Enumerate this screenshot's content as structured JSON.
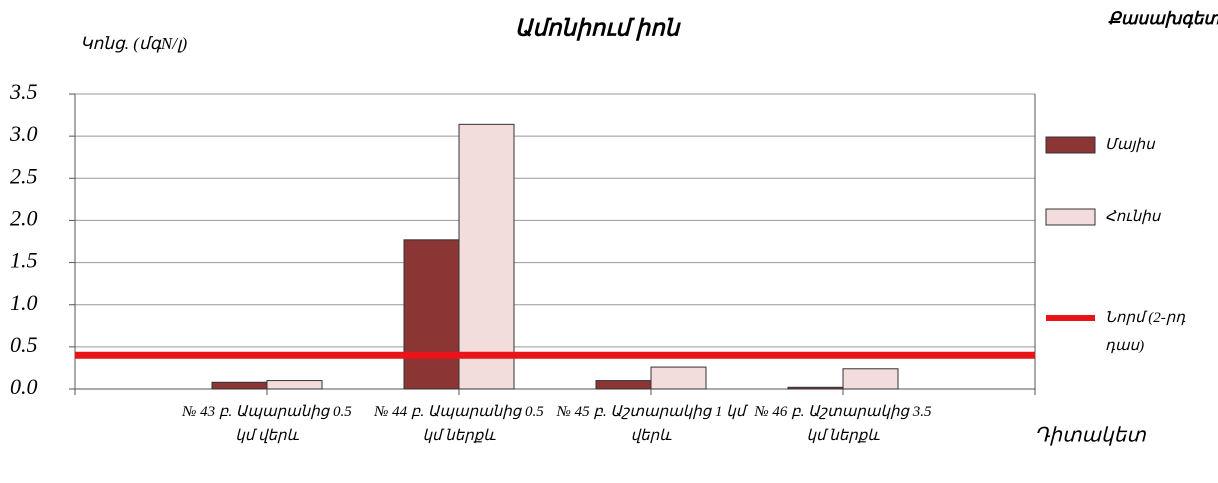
{
  "chart_data": {
    "type": "bar",
    "title": "Ամոնիում իոն",
    "y_label": "Կոնց. (մգN/լ)",
    "x_label": "Դիտակետ",
    "legend_title": "Քասախգետ",
    "categories": [
      "№ 43 բ. Ապարանից 0.5 կմ վերև",
      "№ 44 բ. Ապարանից 0.5 կմ ներքև",
      "№ 45 բ. Աշտարակից 1 կմ վերև",
      "№ 46 բ. Աշտարակից 3.5 կմ ներքև"
    ],
    "series": [
      {
        "name": "Մայիս",
        "color": "#8b3535",
        "values": [
          0.08,
          1.77,
          0.1,
          0.02
        ]
      },
      {
        "name": "Հունիս",
        "color": "#f2dcdc",
        "values": [
          0.1,
          3.14,
          0.26,
          0.24
        ]
      }
    ],
    "norm": {
      "name": "Նորմ (2-րդ դաս)",
      "value": 0.4,
      "color": "#e8141a"
    },
    "ylim": [
      0,
      3.5
    ],
    "yticks": [
      {
        "value": 0,
        "label": "0.0"
      },
      0.5,
      {
        "value": 1,
        "label": "1.0"
      },
      1.5,
      {
        "value": 2,
        "label": "2.0"
      },
      2.5,
      {
        "value": 3,
        "label": "3.0"
      },
      3.5
    ],
    "grid": true,
    "legend": "right"
  }
}
